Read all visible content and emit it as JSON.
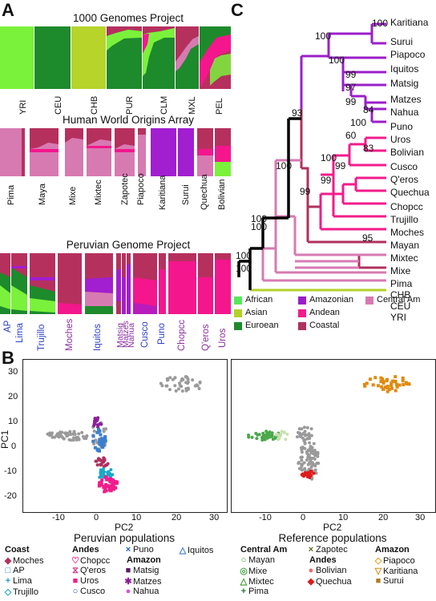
{
  "panel_labels": {
    "a": "A",
    "b": "B",
    "c": "C"
  },
  "panelA": {
    "titles": {
      "g1000": "1000 Genomes Project",
      "hwoa": "Human World Origins Array",
      "pgp": "Peruvian Genome Project"
    },
    "g1000_labels": [
      "YRI",
      "CEU",
      "CHB",
      "PUR",
      "CLM",
      "MXL",
      "PEL"
    ],
    "hwoa_labels": [
      "Pima",
      "Maya",
      "Mixe",
      "Mixtec",
      "Zapotec",
      "Piapoco",
      "Karitiana",
      "Surui",
      "Quechua",
      "Bolivian"
    ],
    "pgp_labels": [
      {
        "text": "AP",
        "color": "#2a3dc7"
      },
      {
        "text": "Lima",
        "color": "#2a3dc7"
      },
      {
        "text": "Trujillo",
        "color": "#2a3dc7"
      },
      {
        "text": "Moches",
        "color": "#8b2ca0"
      },
      {
        "text": "Iquitos",
        "color": "#2a3dc7"
      },
      {
        "text": "Matsig",
        "color": "#8b2ca0"
      },
      {
        "text": "Matzes",
        "color": "#8b2ca0"
      },
      {
        "text": "Nahua",
        "color": "#8b2ca0"
      },
      {
        "text": "Cusco",
        "color": "#2a3dc7"
      },
      {
        "text": "Puno",
        "color": "#2a3dc7"
      },
      {
        "text": "Chopcc",
        "color": "#8b2ca0"
      },
      {
        "text": "Q'eros",
        "color": "#8b2ca0"
      },
      {
        "text": "Uros",
        "color": "#8b2ca0"
      }
    ],
    "colors": {
      "african": "#7af23b",
      "asian": "#b6d42a",
      "european": "#1d8a2c",
      "amazonian": "#a11ed1",
      "andean": "#f4168c",
      "coastal": "#b6305e",
      "central": "#d77ab2"
    }
  },
  "panelC": {
    "leaves": [
      "Karitiana",
      "Surui",
      "Piapoco",
      "Iquitos",
      "Matsig",
      "Matzes",
      "Nahua",
      "Puno",
      "Uros",
      "Bolivian",
      "Cusco",
      "Q'eros",
      "Quechua",
      "Chopcc",
      "Trujillo",
      "Moches",
      "Mayan",
      "Mixtec",
      "Mixe",
      "Pima",
      "CHB",
      "CEU",
      "YRI"
    ],
    "bootstrap": [
      "100",
      "100",
      "100",
      "99",
      "97",
      "99",
      "84",
      "100",
      "60",
      "83",
      "100",
      "99",
      "99",
      "93",
      "100",
      "99",
      "95",
      "100",
      "100",
      "100",
      "100"
    ],
    "legend": [
      {
        "label": "African",
        "color": "#57e85a"
      },
      {
        "label": "Amazonian",
        "color": "#9b1fc9"
      },
      {
        "label": "Central Am",
        "color": "#d77ab2"
      },
      {
        "label": "Asian",
        "color": "#b3d12a"
      },
      {
        "label": "Andean",
        "color": "#f21c8c"
      },
      {
        "label": "Euroean",
        "color": "#1e8a2c"
      },
      {
        "label": "Coastal",
        "color": "#b0305e"
      }
    ]
  },
  "panelB": {
    "left": {
      "xlabel": "PC2",
      "ylabel": "PC1",
      "caption": "Peruvian populations",
      "xticks": [
        "-10",
        "0",
        "10",
        "20",
        "30"
      ],
      "yticks": [
        "30",
        "20",
        "10",
        "0",
        "-10",
        "-20"
      ]
    },
    "right": {
      "xlabel": "PC2",
      "caption": "Reference populations",
      "xticks": [
        "-10",
        "0",
        "10",
        "20",
        "30"
      ]
    },
    "legend_left": {
      "coast": {
        "head": "Coast",
        "items": [
          {
            "sym": "◆",
            "label": "Moches",
            "color": "#b0305e"
          },
          {
            "sym": "□",
            "label": "AP",
            "color": "#1a7fd0"
          },
          {
            "sym": "+",
            "label": "Lima",
            "color": "#1a9fd0"
          },
          {
            "sym": "◇",
            "label": "Trujillo",
            "color": "#1aa8c8"
          }
        ]
      },
      "andes": {
        "head": "Andes",
        "items": [
          {
            "sym": "♡",
            "label": "Chopcc",
            "color": "#f21c8c"
          },
          {
            "sym": "⧖",
            "label": "Q'eros",
            "color": "#d43088"
          },
          {
            "sym": "■",
            "label": "Uros",
            "color": "#f21c8c"
          },
          {
            "sym": "○",
            "label": "Cusco",
            "color": "#1f3fa0"
          }
        ]
      },
      "amazon": {
        "items_top": [
          {
            "sym": "×",
            "label": "Puno",
            "color": "#1f5fd0"
          }
        ],
        "head": "Amazon",
        "items": [
          {
            "sym": "■",
            "label": "Matsig",
            "color": "#5a1a6a"
          },
          {
            "sym": "✱",
            "label": "Matzes",
            "color": "#8b1f9a"
          },
          {
            "sym": "●",
            "label": "Nahua",
            "color": "#d257c9"
          }
        ]
      },
      "iquitos": {
        "sym": "△",
        "label": "Iquitos",
        "color": "#3a7fd0"
      }
    },
    "legend_right": {
      "central": {
        "head": "Central Am",
        "items": [
          {
            "sym": "○",
            "label": "Mayan",
            "color": "#2a9a3a"
          },
          {
            "sym": "◎",
            "label": "Mixe",
            "color": "#4aa84a"
          },
          {
            "sym": "△",
            "label": "Mixtec",
            "color": "#3a9a2a"
          },
          {
            "sym": "+",
            "label": "Pima",
            "color": "#1e7a2a"
          }
        ]
      },
      "andes": {
        "items_top": [
          {
            "sym": "×",
            "label": "Zapotec",
            "color": "#5a6a1a"
          }
        ],
        "head": "Andes",
        "items": [
          {
            "sym": "●",
            "label": "Bolivian",
            "color": "#f06a6a"
          },
          {
            "sym": "◆",
            "label": "Quechua",
            "color": "#e01a1a"
          }
        ]
      },
      "amazon": {
        "head": "Amazon",
        "items": [
          {
            "sym": "◇",
            "label": "Piapoco",
            "color": "#e0a020"
          },
          {
            "sym": "▽",
            "label": "Karitiana",
            "color": "#e08a10"
          },
          {
            "sym": "■",
            "label": "Surui",
            "color": "#b07a20"
          }
        ]
      }
    }
  }
}
